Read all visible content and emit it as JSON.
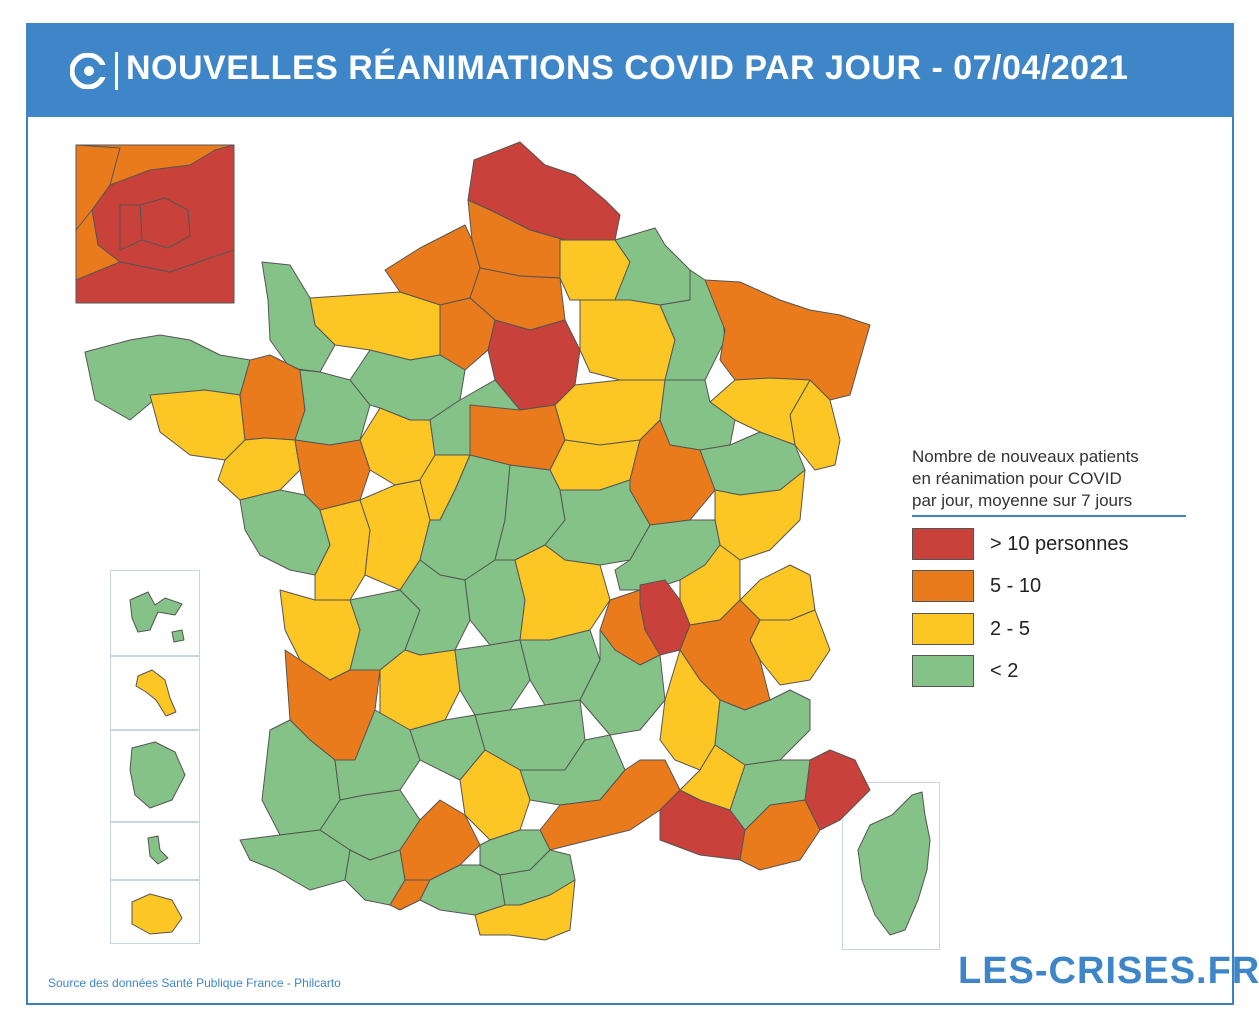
{
  "header": {
    "title": "NOUVELLES RÉANIMATIONS COVID PAR JOUR - 07/04/2021",
    "background": "#3e86c8",
    "logo_icon": "les-crises-c-logo"
  },
  "legend": {
    "title_lines": [
      "Nombre de nouveaux patients",
      "en réanimation pour COVID",
      "par jour, moyenne sur 7 jours"
    ],
    "items": [
      {
        "label": "> 10 personnes",
        "color": "#c8413b"
      },
      {
        "label": "5 - 10",
        "color": "#ea7b1c"
      },
      {
        "label": "2 - 5",
        "color": "#fcc624"
      },
      {
        "label": "< 2",
        "color": "#85c287"
      }
    ]
  },
  "footer": {
    "source": "Source des données Santé Publique France - Philcarto",
    "brand": "LES-CRISES.FR"
  },
  "colors": {
    "red": "#c8413b",
    "orange": "#ea7b1c",
    "yellow": "#fcc624",
    "green": "#85c287",
    "border": "#555555",
    "accent": "#3e86c8"
  }
}
